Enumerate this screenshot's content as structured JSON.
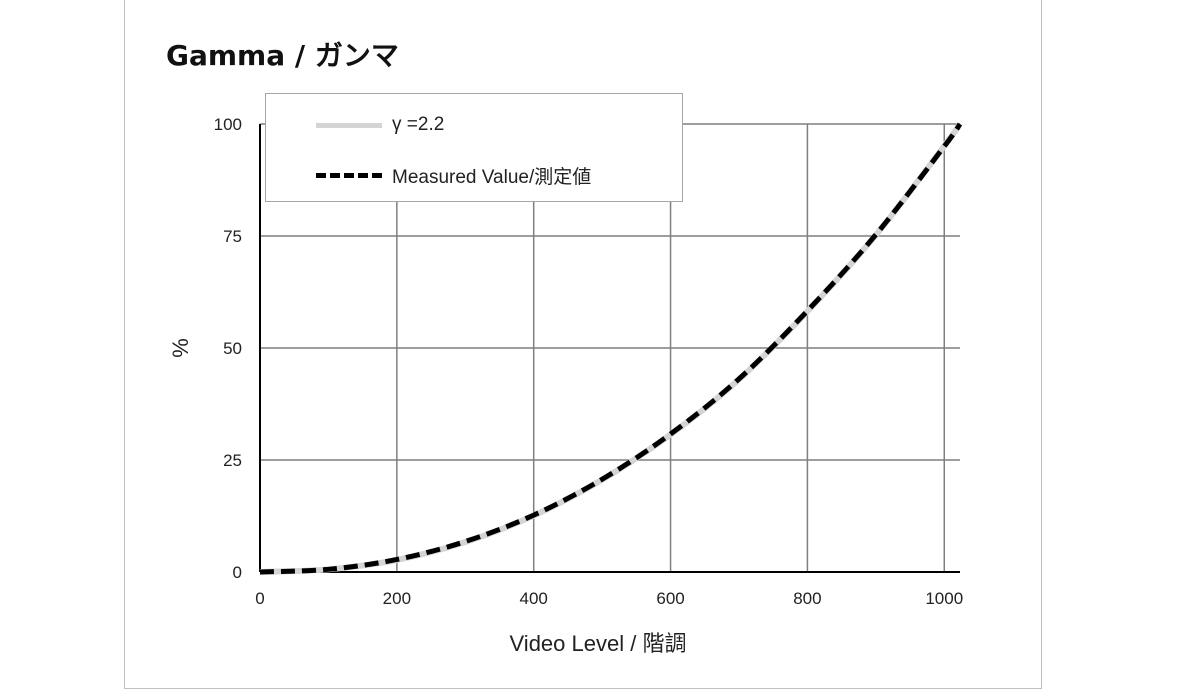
{
  "chart_data": {
    "type": "line",
    "title": "Gamma / ガンマ",
    "xlabel": "Video Level / 階調",
    "ylabel": "%",
    "xlim": [
      0,
      1023
    ],
    "ylim": [
      0,
      100
    ],
    "x_ticks": [
      "0",
      "200",
      "400",
      "600",
      "800",
      "1000"
    ],
    "y_ticks": [
      "0",
      "25",
      "50",
      "75",
      "100"
    ],
    "x_tick_values": [
      0,
      200,
      400,
      600,
      800,
      1000
    ],
    "y_tick_values": [
      0,
      25,
      50,
      75,
      100
    ],
    "grid": true,
    "legend_position": "top-left",
    "x": [
      0,
      100,
      200,
      300,
      400,
      500,
      600,
      700,
      800,
      900,
      1000,
      1023
    ],
    "series": [
      {
        "name": "γ =2.2",
        "color": "#d4d4d4",
        "style": "solid",
        "values": [
          0,
          0.6,
          2.7,
          6.7,
          12.6,
          20.6,
          30.7,
          43.0,
          58.2,
          75.2,
          95.1,
          100
        ]
      },
      {
        "name": "Measured Value/測定値",
        "color": "#000000",
        "style": "dashed",
        "values": [
          0,
          0.6,
          2.8,
          6.8,
          12.7,
          20.7,
          30.8,
          43.1,
          58.3,
          75.3,
          95.0,
          100
        ]
      }
    ]
  }
}
